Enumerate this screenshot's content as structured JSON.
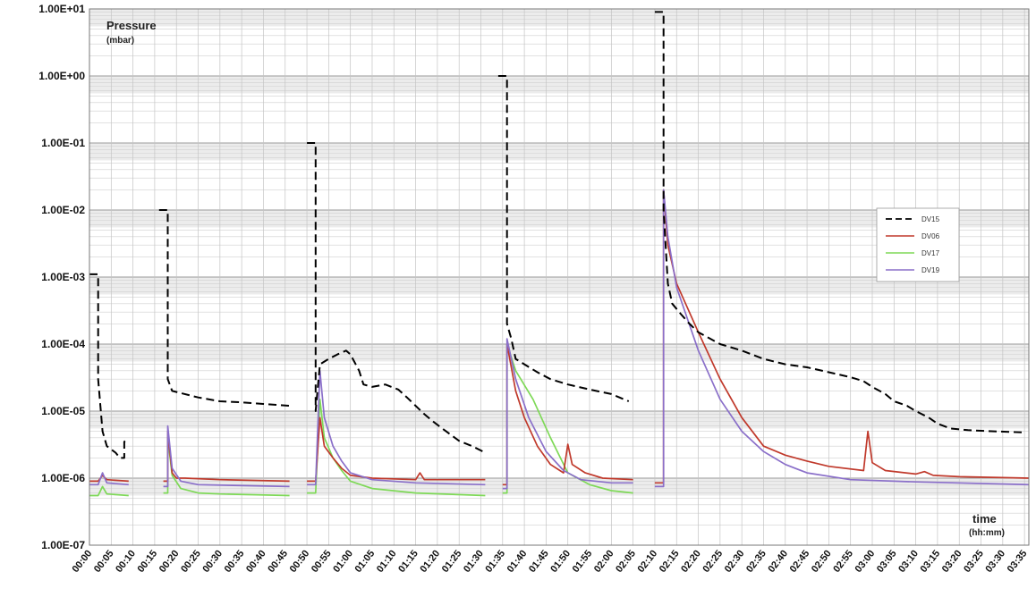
{
  "chart_data": {
    "type": "line",
    "y_scale": "log",
    "ylim": [
      1e-07,
      10
    ],
    "y_ticks": [
      "1.00E-07",
      "1.00E-06",
      "1.00E-05",
      "1.00E-04",
      "1.00E-03",
      "1.00E-02",
      "1.00E-01",
      "1.00E+00",
      "1.00E+01"
    ],
    "xlim": [
      "00:00",
      "03:36"
    ],
    "x_ticks": [
      "00:00",
      "00:05",
      "00:10",
      "00:15",
      "00:20",
      "00:25",
      "00:30",
      "00:35",
      "00:40",
      "00:45",
      "00:50",
      "00:55",
      "01:00",
      "01:05",
      "01:10",
      "01:15",
      "01:20",
      "01:25",
      "01:30",
      "01:35",
      "01:40",
      "01:45",
      "01:50",
      "01:55",
      "02:00",
      "02:05",
      "02:10",
      "02:15",
      "02:20",
      "02:25",
      "02:30",
      "02:35",
      "02:40",
      "02:45",
      "02:50",
      "02:55",
      "03:00",
      "03:05",
      "03:10",
      "03:15",
      "03:20",
      "03:25",
      "03:30",
      "03:35"
    ],
    "ylabel": "Pressure",
    "yunit": "(mbar)",
    "xlabel": "time",
    "xunit": "(hh:mm)",
    "grid": true,
    "legend_position": "right",
    "series": [
      {
        "name": "DV15",
        "color": "#000000",
        "dash": true,
        "segments": [
          [
            [
              "00:00",
              0.0011
            ],
            [
              "00:01",
              0.0011
            ],
            [
              "00:02",
              0.0011
            ],
            [
              "00:02",
              3e-05
            ],
            [
              "00:03",
              5e-06
            ],
            [
              "00:04",
              3e-06
            ],
            [
              "00:06",
              2.4e-06
            ],
            [
              "00:07",
              2e-06
            ],
            [
              "00:08",
              2e-06
            ],
            [
              "00:08",
              3.5e-06
            ],
            [
              "00:09",
              3.8e-06
            ]
          ],
          [
            [
              "00:16",
              0.01
            ],
            [
              "00:17",
              0.01
            ],
            [
              "00:18",
              0.01
            ],
            [
              "00:18",
              3e-05
            ],
            [
              "00:19",
              2e-05
            ],
            [
              "00:25",
              1.6e-05
            ],
            [
              "00:30",
              1.4e-05
            ],
            [
              "00:35",
              1.35e-05
            ],
            [
              "00:40",
              1.28e-05
            ],
            [
              "00:46",
              1.2e-05
            ]
          ],
          [
            [
              "00:50",
              0.1
            ],
            [
              "00:51",
              0.1
            ],
            [
              "00:52",
              0.1
            ],
            [
              "00:52",
              1e-05
            ],
            [
              "00:53",
              5e-05
            ],
            [
              "00:55",
              6e-05
            ],
            [
              "00:57",
              7e-05
            ],
            [
              "00:59",
              8e-05
            ],
            [
              "01:00",
              7e-05
            ],
            [
              "01:02",
              4e-05
            ],
            [
              "01:03",
              2.5e-05
            ],
            [
              "01:05",
              2.3e-05
            ],
            [
              "01:08",
              2.5e-05
            ],
            [
              "01:11",
              2.1e-05
            ],
            [
              "01:13",
              1.6e-05
            ],
            [
              "01:15",
              1.2e-05
            ],
            [
              "01:17",
              9e-06
            ],
            [
              "01:19",
              7e-06
            ],
            [
              "01:22",
              5e-06
            ],
            [
              "01:25",
              3.6e-06
            ],
            [
              "01:28",
              3e-06
            ],
            [
              "01:31",
              2.4e-06
            ]
          ],
          [
            [
              "01:34",
              1.0
            ],
            [
              "01:35",
              1.0
            ],
            [
              "01:36",
              1.0
            ],
            [
              "01:36",
              0.0002
            ],
            [
              "01:37",
              0.00012
            ],
            [
              "01:38",
              6e-05
            ],
            [
              "01:40",
              5e-05
            ],
            [
              "01:43",
              3.8e-05
            ],
            [
              "01:46",
              3e-05
            ],
            [
              "01:50",
              2.5e-05
            ],
            [
              "01:55",
              2.1e-05
            ],
            [
              "02:00",
              1.8e-05
            ],
            [
              "02:04",
              1.4e-05
            ]
          ],
          [
            [
              "02:10",
              9.0
            ],
            [
              "02:11",
              9.0
            ],
            [
              "02:12",
              9.0
            ],
            [
              "02:12",
              0.01
            ],
            [
              "02:13",
              0.0008
            ],
            [
              "02:14",
              0.0004
            ],
            [
              "02:16",
              0.00028
            ],
            [
              "02:18",
              0.0002
            ],
            [
              "02:20",
              0.00015
            ],
            [
              "02:25",
              0.0001
            ],
            [
              "02:30",
              8e-05
            ],
            [
              "02:35",
              6e-05
            ],
            [
              "02:40",
              5e-05
            ],
            [
              "02:45",
              4.5e-05
            ],
            [
              "02:50",
              3.8e-05
            ],
            [
              "02:55",
              3.2e-05
            ],
            [
              "02:58",
              2.8e-05
            ],
            [
              "03:00",
              2.3e-05
            ],
            [
              "03:03",
              1.8e-05
            ],
            [
              "03:05",
              1.4e-05
            ],
            [
              "03:08",
              1.2e-05
            ],
            [
              "03:10",
              1e-05
            ],
            [
              "03:13",
              8e-06
            ],
            [
              "03:15",
              6.5e-06
            ],
            [
              "03:18",
              5.5e-06
            ],
            [
              "03:22",
              5.2e-06
            ],
            [
              "03:28",
              5e-06
            ],
            [
              "03:35",
              4.8e-06
            ]
          ]
        ]
      },
      {
        "name": "DV06",
        "color": "#c0392b",
        "dash": false,
        "segments": [
          [
            [
              "00:00",
              9e-07
            ],
            [
              "00:02",
              9e-07
            ],
            [
              "00:03",
              1.1e-06
            ],
            [
              "00:04",
              9.5e-07
            ],
            [
              "00:09",
              9e-07
            ]
          ],
          [
            [
              "00:17",
              9e-07
            ],
            [
              "00:18",
              9e-07
            ],
            [
              "00:18",
              5e-06
            ],
            [
              "00:19",
              1.2e-06
            ],
            [
              "00:20",
              1e-06
            ],
            [
              "00:22",
              1e-06
            ],
            [
              "00:30",
              9.5e-07
            ],
            [
              "00:46",
              9e-07
            ]
          ],
          [
            [
              "00:50",
              9e-07
            ],
            [
              "00:52",
              9e-07
            ],
            [
              "00:53",
              8e-06
            ],
            [
              "00:54",
              3e-06
            ],
            [
              "00:56",
              2e-06
            ],
            [
              "00:58",
              1.4e-06
            ],
            [
              "01:00",
              1.1e-06
            ],
            [
              "01:05",
              1e-06
            ],
            [
              "01:15",
              9.5e-07
            ],
            [
              "01:16",
              1.2e-06
            ],
            [
              "01:17",
              9.5e-07
            ],
            [
              "01:31",
              9.5e-07
            ]
          ],
          [
            [
              "01:35",
              8e-07
            ],
            [
              "01:36",
              8e-07
            ],
            [
              "01:36",
              0.0001
            ],
            [
              "01:38",
              2e-05
            ],
            [
              "01:40",
              8e-06
            ],
            [
              "01:43",
              3e-06
            ],
            [
              "01:46",
              1.6e-06
            ],
            [
              "01:49",
              1.2e-06
            ],
            [
              "01:50",
              3.2e-06
            ],
            [
              "01:51",
              1.6e-06
            ],
            [
              "01:54",
              1.2e-06
            ],
            [
              "01:58",
              1e-06
            ],
            [
              "02:05",
              9.5e-07
            ]
          ],
          [
            [
              "02:10",
              8.5e-07
            ],
            [
              "02:12",
              8.5e-07
            ],
            [
              "02:12",
              0.02
            ],
            [
              "02:13",
              0.003
            ],
            [
              "02:15",
              0.0008
            ],
            [
              "02:20",
              0.00015
            ],
            [
              "02:25",
              3e-05
            ],
            [
              "02:30",
              8e-06
            ],
            [
              "02:35",
              3e-06
            ],
            [
              "02:40",
              2.2e-06
            ],
            [
              "02:45",
              1.8e-06
            ],
            [
              "02:50",
              1.5e-06
            ],
            [
              "02:58",
              1.3e-06
            ],
            [
              "02:59",
              5e-06
            ],
            [
              "03:00",
              1.7e-06
            ],
            [
              "03:03",
              1.3e-06
            ],
            [
              "03:10",
              1.15e-06
            ],
            [
              "03:12",
              1.25e-06
            ],
            [
              "03:14",
              1.1e-06
            ],
            [
              "03:20",
              1.05e-06
            ],
            [
              "03:36",
              1e-06
            ]
          ]
        ]
      },
      {
        "name": "DV17",
        "color": "#7ed957",
        "dash": false,
        "segments": [
          [
            [
              "00:00",
              5.5e-07
            ],
            [
              "00:02",
              5.5e-07
            ],
            [
              "00:03",
              7.5e-07
            ],
            [
              "00:04",
              5.8e-07
            ],
            [
              "00:09",
              5.5e-07
            ]
          ],
          [
            [
              "00:17",
              6e-07
            ],
            [
              "00:18",
              6e-07
            ],
            [
              "00:18",
              4e-06
            ],
            [
              "00:19",
              1.1e-06
            ],
            [
              "00:21",
              7e-07
            ],
            [
              "00:25",
              6e-07
            ],
            [
              "00:30",
              5.8e-07
            ],
            [
              "00:46",
              5.5e-07
            ]
          ],
          [
            [
              "00:50",
              6e-07
            ],
            [
              "00:52",
              6e-07
            ],
            [
              "00:53",
              1.5e-05
            ],
            [
              "00:54",
              4e-06
            ],
            [
              "00:56",
              2e-06
            ],
            [
              "00:58",
              1.3e-06
            ],
            [
              "01:00",
              9e-07
            ],
            [
              "01:05",
              7e-07
            ],
            [
              "01:15",
              6e-07
            ],
            [
              "01:31",
              5.5e-07
            ]
          ],
          [
            [
              "01:35",
              6e-07
            ],
            [
              "01:36",
              6e-07
            ],
            [
              "01:36",
              0.0001
            ],
            [
              "01:38",
              4e-05
            ],
            [
              "01:42",
              1.5e-05
            ],
            [
              "01:46",
              4e-06
            ],
            [
              "01:50",
              1.2e-06
            ],
            [
              "01:55",
              8e-07
            ],
            [
              "02:00",
              6.5e-07
            ],
            [
              "02:05",
              6e-07
            ]
          ]
        ]
      },
      {
        "name": "DV19",
        "color": "#8a6fc9",
        "dash": false,
        "segments": [
          [
            [
              "00:00",
              8e-07
            ],
            [
              "00:02",
              8e-07
            ],
            [
              "00:03",
              1.2e-06
            ],
            [
              "00:04",
              8.5e-07
            ],
            [
              "00:09",
              8e-07
            ]
          ],
          [
            [
              "00:17",
              7.5e-07
            ],
            [
              "00:18",
              7.5e-07
            ],
            [
              "00:18",
              6e-06
            ],
            [
              "00:19",
              1.4e-06
            ],
            [
              "00:21",
              9e-07
            ],
            [
              "00:25",
              8e-07
            ],
            [
              "00:46",
              7.5e-07
            ]
          ],
          [
            [
              "00:50",
              8e-07
            ],
            [
              "00:52",
              8e-07
            ],
            [
              "00:53",
              4e-05
            ],
            [
              "00:54",
              8e-06
            ],
            [
              "00:56",
              3e-06
            ],
            [
              "00:58",
              1.8e-06
            ],
            [
              "01:00",
              1.2e-06
            ],
            [
              "01:05",
              9.5e-07
            ],
            [
              "01:15",
              8.5e-07
            ],
            [
              "01:31",
              8e-07
            ]
          ],
          [
            [
              "01:35",
              7e-07
            ],
            [
              "01:36",
              7e-07
            ],
            [
              "01:36",
              0.00012
            ],
            [
              "01:38",
              3e-05
            ],
            [
              "01:41",
              8e-06
            ],
            [
              "01:45",
              2.5e-06
            ],
            [
              "01:49",
              1.3e-06
            ],
            [
              "01:53",
              9.5e-07
            ],
            [
              "02:00",
              8.5e-07
            ],
            [
              "02:05",
              8.5e-07
            ]
          ],
          [
            [
              "02:10",
              7.5e-07
            ],
            [
              "02:12",
              7.5e-07
            ],
            [
              "02:12",
              0.02
            ],
            [
              "02:13",
              0.004
            ],
            [
              "02:15",
              0.0007
            ],
            [
              "02:20",
              8e-05
            ],
            [
              "02:25",
              1.5e-05
            ],
            [
              "02:30",
              5e-06
            ],
            [
              "02:35",
              2.5e-06
            ],
            [
              "02:40",
              1.6e-06
            ],
            [
              "02:45",
              1.2e-06
            ],
            [
              "02:55",
              9.5e-07
            ],
            [
              "03:10",
              8.8e-07
            ],
            [
              "03:36",
              8e-07
            ]
          ]
        ]
      }
    ]
  }
}
